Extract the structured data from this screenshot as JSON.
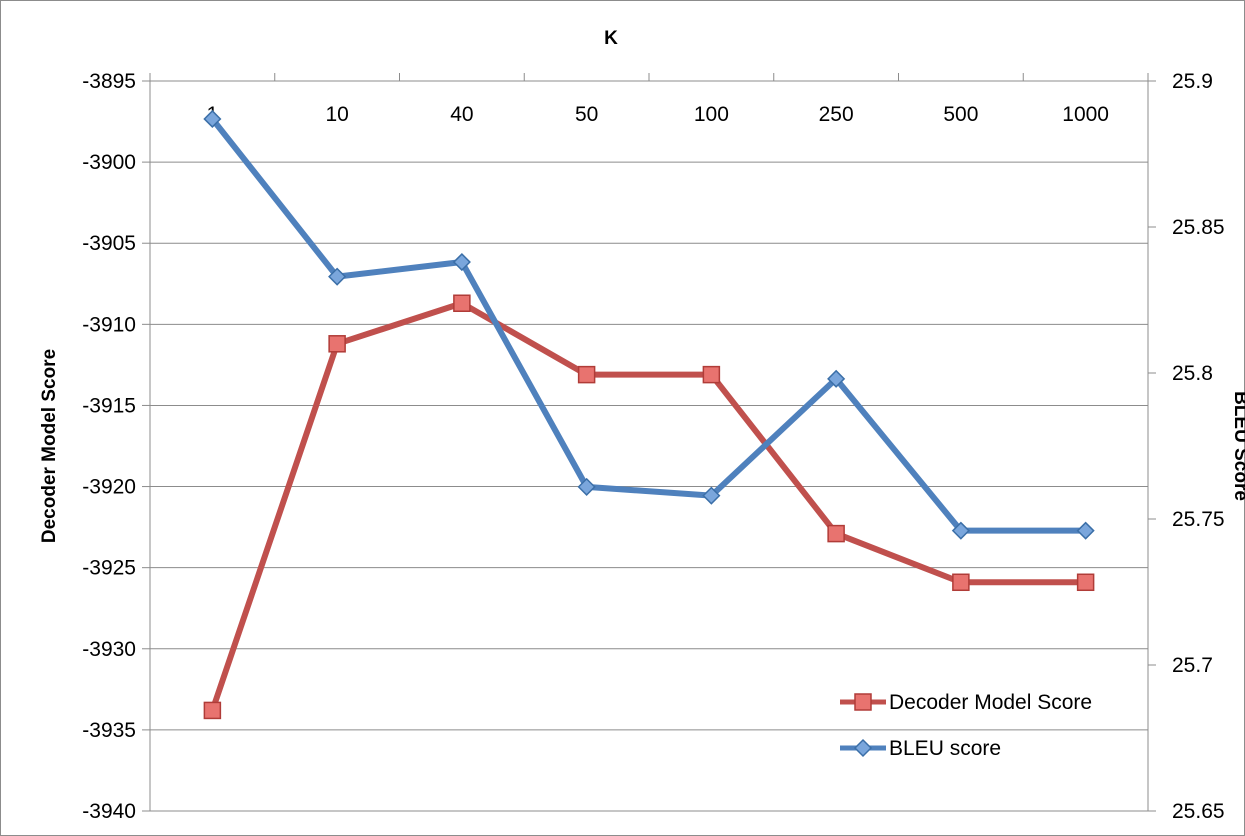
{
  "chart_data": {
    "type": "line",
    "title": "K",
    "xlabel": "K",
    "categories": [
      "1",
      "10",
      "40",
      "50",
      "100",
      "250",
      "500",
      "1000"
    ],
    "y_left": {
      "label": "Decoder Model Score",
      "range": [
        -3940,
        -3895
      ],
      "ticks": [
        "-3895",
        "-3900",
        "-3905",
        "-3910",
        "-3915",
        "-3920",
        "-3925",
        "-3930",
        "-3935",
        "-3940"
      ]
    },
    "y_right": {
      "label": "BLEU Score",
      "range": [
        25.65,
        25.9
      ],
      "ticks": [
        "25.9",
        "25.85",
        "25.8",
        "25.75",
        "25.7",
        "25.65"
      ]
    },
    "series": [
      {
        "name": "Decoder Model Score",
        "axis": "left",
        "color": "#c0504d",
        "marker": "square",
        "values": [
          -3933.8,
          -3911.2,
          -3908.7,
          -3913.1,
          -3913.1,
          -3922.9,
          -3925.9,
          -3925.9
        ]
      },
      {
        "name": "BLEU score",
        "axis": "right",
        "color": "#4f81bd",
        "marker": "diamond",
        "values": [
          25.887,
          25.833,
          25.838,
          25.761,
          25.758,
          25.798,
          25.746,
          25.746
        ]
      }
    ],
    "grid": true,
    "legend": "bottom-right"
  }
}
